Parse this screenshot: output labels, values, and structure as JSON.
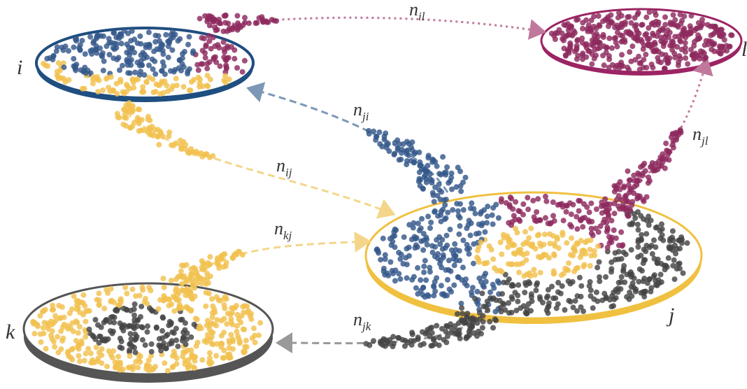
{
  "nodes": [
    {
      "label": "i"
    },
    {
      "label": "l"
    },
    {
      "label": "j"
    },
    {
      "label": "k"
    }
  ],
  "edges": [
    {
      "symbol": "n",
      "subscript": "il"
    },
    {
      "symbol": "n",
      "subscript": "ji"
    },
    {
      "symbol": "n",
      "subscript": "ij"
    },
    {
      "symbol": "n",
      "subscript": "jl"
    },
    {
      "symbol": "n",
      "subscript": "kj"
    },
    {
      "symbol": "n",
      "subscript": "jk"
    }
  ]
}
